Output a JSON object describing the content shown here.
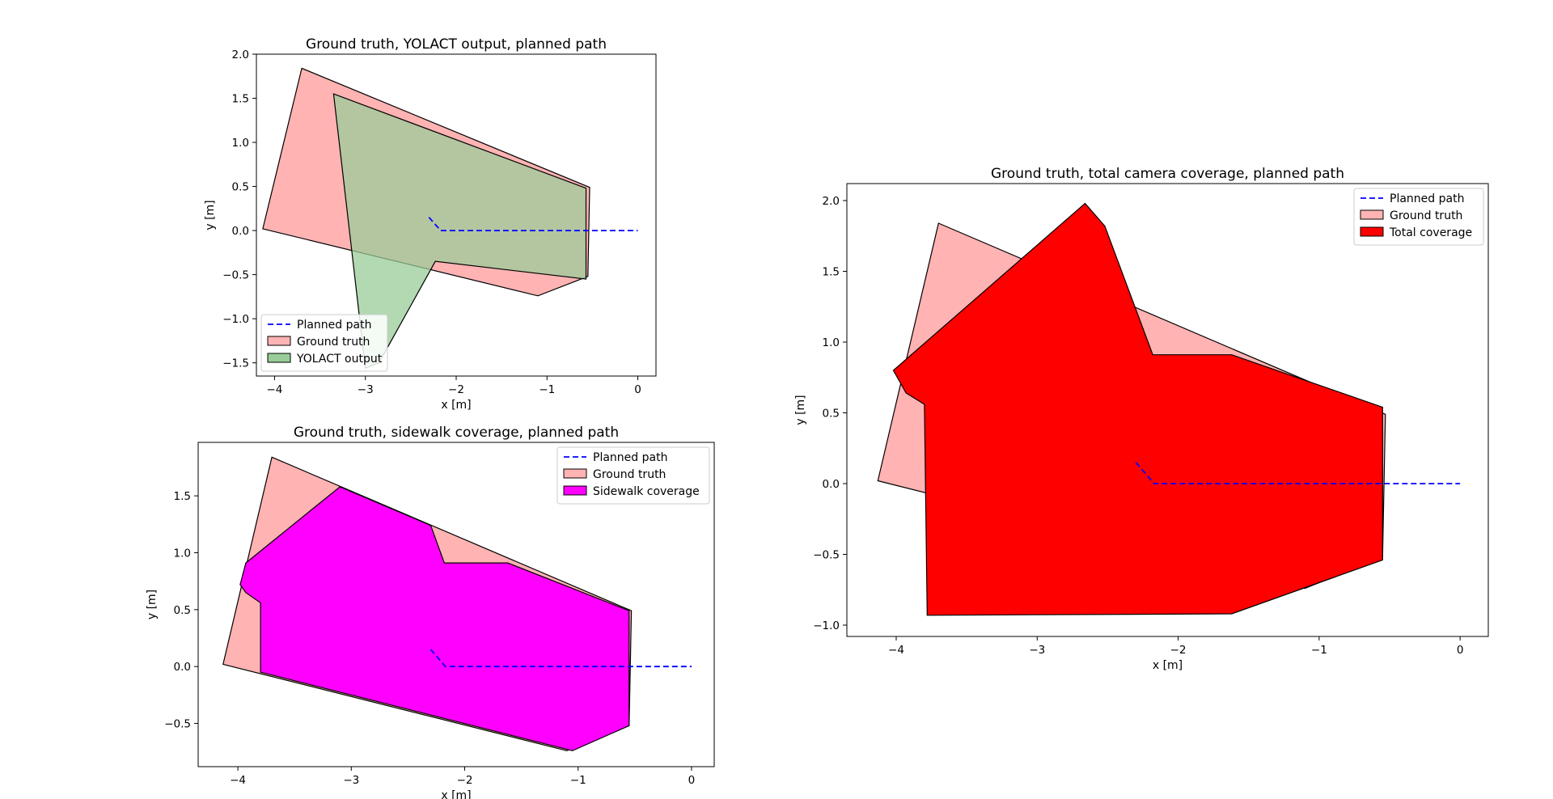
{
  "colors": {
    "planned_path": "#0000ff",
    "ground_truth": "#ffb3b3",
    "yolact_output": "#99cc99",
    "sidewalk_coverage": "#ff00ff",
    "total_coverage": "#ff0000",
    "edge": "#000000"
  },
  "chart_data": [
    {
      "id": "top-left",
      "type": "area",
      "title": "Ground truth, YOLACT output, planned path",
      "xlabel": "x [m]",
      "ylabel": "y [m]",
      "xlim": [
        -4.2,
        0.2
      ],
      "ylim": [
        -1.65,
        2.0
      ],
      "xticks": [
        -4,
        -3,
        -2,
        -1,
        0
      ],
      "yticks": [
        -1.5,
        -1.0,
        -0.5,
        0.0,
        0.5,
        1.0,
        1.5,
        2.0
      ],
      "grid": false,
      "legend": {
        "placement": "lower-left",
        "entries": [
          {
            "label": "Planned path",
            "kind": "line"
          },
          {
            "label": "Ground truth",
            "kind": "patch",
            "color": "ground_truth"
          },
          {
            "label": "YOLACT output",
            "kind": "patch",
            "color": "yolact_output"
          }
        ]
      },
      "series": [
        {
          "name": "Ground truth",
          "kind": "polygon",
          "color": "ground_truth",
          "opacity": 1.0,
          "points": [
            [
              -3.7,
              1.84
            ],
            [
              -0.53,
              0.49
            ],
            [
              -0.55,
              -0.52
            ],
            [
              -1.1,
              -0.74
            ],
            [
              -4.13,
              0.02
            ]
          ]
        },
        {
          "name": "YOLACT output",
          "kind": "polygon",
          "color": "yolact_output",
          "opacity": 0.75,
          "points": [
            [
              -3.35,
              1.55
            ],
            [
              -0.57,
              0.48
            ],
            [
              -0.57,
              -0.55
            ],
            [
              -2.23,
              -0.35
            ],
            [
              -2.85,
              -1.5
            ],
            [
              -3.0,
              -1.56
            ]
          ]
        },
        {
          "name": "Planned path",
          "kind": "line",
          "points": [
            [
              -2.3,
              0.15
            ],
            [
              -2.17,
              0.0
            ],
            [
              0.0,
              0.0
            ]
          ]
        }
      ]
    },
    {
      "id": "bottom-left",
      "type": "area",
      "title": "Ground truth, sidewalk coverage, planned path",
      "xlabel": "x [m]",
      "ylabel": "y [m]",
      "xlim": [
        -4.35,
        0.2
      ],
      "ylim": [
        -0.88,
        1.97
      ],
      "xticks": [
        -4,
        -3,
        -2,
        -1,
        0
      ],
      "yticks": [
        -0.5,
        0.0,
        0.5,
        1.0,
        1.5
      ],
      "grid": false,
      "legend": {
        "placement": "top-right",
        "entries": [
          {
            "label": "Planned path",
            "kind": "line"
          },
          {
            "label": "Ground truth",
            "kind": "patch",
            "color": "ground_truth"
          },
          {
            "label": "Sidewalk coverage",
            "kind": "patch",
            "color": "sidewalk_coverage"
          }
        ]
      },
      "series": [
        {
          "name": "Ground truth",
          "kind": "polygon",
          "color": "ground_truth",
          "opacity": 1.0,
          "points": [
            [
              -3.7,
              1.84
            ],
            [
              -0.53,
              0.49
            ],
            [
              -0.55,
              -0.52
            ],
            [
              -1.1,
              -0.74
            ],
            [
              -4.13,
              0.02
            ]
          ]
        },
        {
          "name": "Sidewalk coverage",
          "kind": "polygon",
          "color": "sidewalk_coverage",
          "opacity": 1.0,
          "points": [
            [
              -3.1,
              1.58
            ],
            [
              -2.3,
              1.24
            ],
            [
              -2.18,
              0.91
            ],
            [
              -1.62,
              0.91
            ],
            [
              -0.55,
              0.49
            ],
            [
              -0.55,
              -0.52
            ],
            [
              -1.05,
              -0.74
            ],
            [
              -3.8,
              -0.05
            ],
            [
              -3.8,
              0.56
            ],
            [
              -3.93,
              0.65
            ],
            [
              -3.98,
              0.72
            ],
            [
              -3.93,
              0.91
            ]
          ]
        },
        {
          "name": "Planned path",
          "kind": "line",
          "points": [
            [
              -2.3,
              0.15
            ],
            [
              -2.17,
              0.0
            ],
            [
              0.0,
              0.0
            ]
          ]
        }
      ]
    },
    {
      "id": "right",
      "type": "area",
      "title": "Ground truth, total camera coverage, planned path",
      "xlabel": "x [m]",
      "ylabel": "y [m]",
      "xlim": [
        -4.35,
        0.2
      ],
      "ylim": [
        -1.08,
        2.12
      ],
      "xticks": [
        -4,
        -3,
        -2,
        -1,
        0
      ],
      "yticks": [
        -1.0,
        -0.5,
        0.0,
        0.5,
        1.0,
        1.5,
        2.0
      ],
      "grid": false,
      "legend": {
        "placement": "top-right",
        "entries": [
          {
            "label": "Planned path",
            "kind": "line"
          },
          {
            "label": "Ground truth",
            "kind": "patch",
            "color": "ground_truth"
          },
          {
            "label": "Total coverage",
            "kind": "patch",
            "color": "total_coverage"
          }
        ]
      },
      "series": [
        {
          "name": "Ground truth",
          "kind": "polygon",
          "color": "ground_truth",
          "opacity": 1.0,
          "points": [
            [
              -3.7,
              1.84
            ],
            [
              -0.53,
              0.49
            ],
            [
              -0.55,
              -0.52
            ],
            [
              -1.1,
              -0.74
            ],
            [
              -4.13,
              0.02
            ]
          ]
        },
        {
          "name": "Total coverage",
          "kind": "polygon",
          "color": "total_coverage",
          "opacity": 1.0,
          "points": [
            [
              -2.66,
              1.98
            ],
            [
              -2.52,
              1.82
            ],
            [
              -2.18,
              0.91
            ],
            [
              -1.62,
              0.91
            ],
            [
              -0.55,
              0.54
            ],
            [
              -0.55,
              -0.54
            ],
            [
              -1.62,
              -0.92
            ],
            [
              -3.78,
              -0.93
            ],
            [
              -3.8,
              0.56
            ],
            [
              -3.93,
              0.64
            ],
            [
              -4.02,
              0.8
            ]
          ]
        },
        {
          "name": "Planned path",
          "kind": "line",
          "points": [
            [
              -2.3,
              0.15
            ],
            [
              -2.17,
              0.0
            ],
            [
              0.0,
              0.0
            ]
          ]
        }
      ]
    }
  ]
}
